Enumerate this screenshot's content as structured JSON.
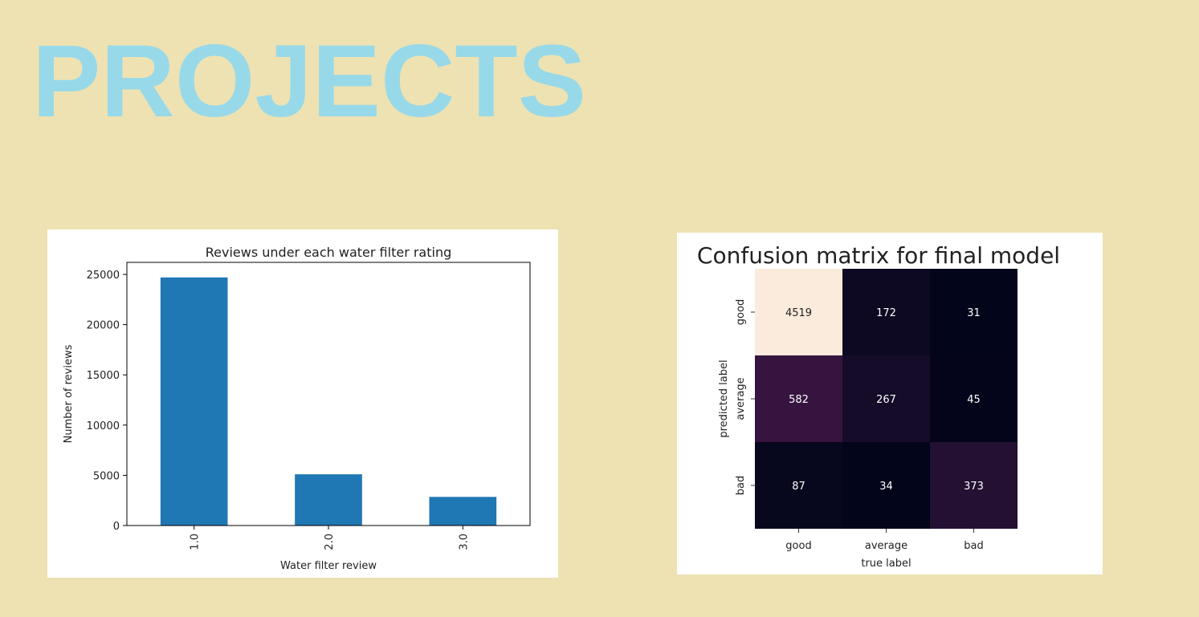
{
  "page": {
    "title": "PROJECTS"
  },
  "colors": {
    "background": "#eee2b2",
    "title": "#98d9e9",
    "bar": "#1f77b4"
  },
  "chart_data": [
    {
      "type": "bar",
      "title": "Reviews under each water filter rating",
      "xlabel": "Water filter review",
      "ylabel": "Number of reviews",
      "categories": [
        "1.0",
        "2.0",
        "3.0"
      ],
      "values": [
        24700,
        5100,
        2850
      ],
      "ylim": [
        0,
        26200
      ],
      "yticks": [
        0,
        5000,
        10000,
        15000,
        20000,
        25000
      ],
      "ytick_labels": [
        "0",
        "5000",
        "10000",
        "15000",
        "20000",
        "25000"
      ],
      "grid": false,
      "color": "#1f77b4"
    },
    {
      "type": "heatmap",
      "title": "Confusion matrix for final model",
      "xlabel": "true label",
      "ylabel": "predicted label",
      "x_categories": [
        "good",
        "average",
        "bad"
      ],
      "y_categories": [
        "good",
        "average",
        "bad"
      ],
      "values": [
        [
          4519,
          172,
          31
        ],
        [
          582,
          267,
          45
        ],
        [
          87,
          34,
          373
        ]
      ],
      "colormap": "rocket",
      "grid": false
    }
  ]
}
